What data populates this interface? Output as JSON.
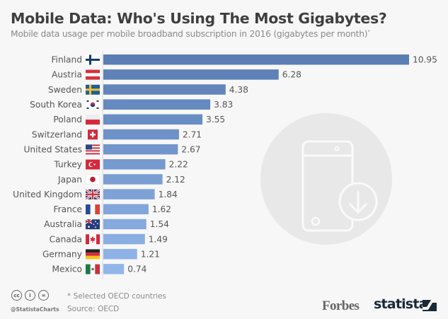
{
  "header": {
    "title": "Mobile Data: Who's Using The Most Gigabytes?",
    "subtitle": "Mobile data usage per mobile broadband subscription in 2016 (gigabytes per month)",
    "subtitle_mark": "*"
  },
  "chart_data": {
    "type": "bar",
    "orientation": "horizontal",
    "title": "Mobile Data: Who's Using The Most Gigabytes?",
    "subtitle": "Mobile data usage per mobile broadband subscription in 2016 (gigabytes per month)*",
    "xlabel": "",
    "ylabel": "",
    "unit": "gigabytes per month",
    "categories": [
      "Finland",
      "Austria",
      "Sweden",
      "South Korea",
      "Poland",
      "Switzerland",
      "United States",
      "Turkey",
      "Japan",
      "United Kingdom",
      "France",
      "Australia",
      "Canada",
      "Germany",
      "Mexico"
    ],
    "values": [
      10.95,
      6.28,
      4.38,
      3.83,
      3.55,
      2.71,
      2.67,
      2.22,
      2.12,
      1.84,
      1.62,
      1.54,
      1.49,
      1.21,
      0.74
    ],
    "value_labels": [
      "10.95",
      "6.28",
      "4.38",
      "3.83",
      "3.55",
      "2.71",
      "2.67",
      "2.22",
      "2.12",
      "1.84",
      "1.62",
      "1.54",
      "1.49",
      "1.21",
      "0.74"
    ],
    "flags": [
      "finland",
      "austria",
      "sweden",
      "south-korea",
      "poland",
      "switzerland",
      "united-states",
      "turkey",
      "japan",
      "united-kingdom",
      "france",
      "australia",
      "canada",
      "germany",
      "mexico"
    ],
    "xlim": [
      0,
      10.95
    ],
    "grid": false,
    "legend": "none",
    "colors": {
      "bar_top": "#5a7db3",
      "bar_bottom": "#92b6ea"
    }
  },
  "footer": {
    "note": "* Selected OECD countries",
    "source": "Source: OECD",
    "handle": "@StatistaCharts",
    "license_icons": [
      "cc-icon",
      "attribution-icon",
      "no-derivatives-icon"
    ],
    "license_glyphs": [
      "cc",
      "i",
      "="
    ],
    "brand_forbes": "Forbes",
    "brand_statista": "statista"
  },
  "background_icon": "smartphone-download-icon"
}
